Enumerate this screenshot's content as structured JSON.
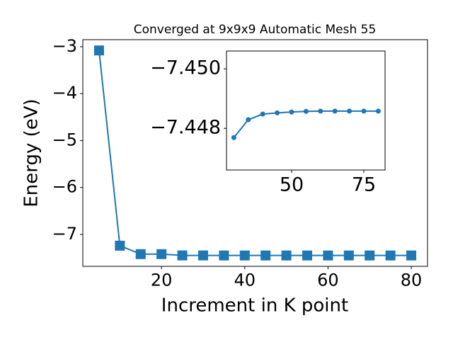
{
  "chart_data": [
    {
      "type": "line",
      "title": "Converged at 9x9x9 Automatic Mesh 55",
      "x_label": "Increment in K point",
      "y_label": "Energy (eV)",
      "x": [
        5,
        10,
        15,
        20,
        25,
        30,
        35,
        40,
        45,
        50,
        55,
        60,
        65,
        70,
        75,
        80
      ],
      "series": [
        {
          "color": "#1f77b4",
          "marker": "square",
          "values": [
            -3.08,
            -7.24,
            -7.42,
            -7.42,
            -7.447,
            -7.44769,
            -7.44829,
            -7.44848,
            -7.44852,
            -7.44855,
            -7.44857,
            -7.44858,
            -7.44858,
            -7.44858,
            -7.44858,
            -7.44858
          ]
        }
      ],
      "xlim": [
        1.1,
        83.9
      ],
      "ylim": [
        -7.68,
        -2.85
      ],
      "xticks": [
        20,
        40,
        60,
        80
      ],
      "yticks": [
        {
          "value": -7,
          "label": "−7"
        },
        {
          "value": -6,
          "label": "−6"
        },
        {
          "value": -5,
          "label": "−5"
        },
        {
          "value": -4,
          "label": "−4"
        },
        {
          "value": -3,
          "label": "−3"
        }
      ]
    },
    {
      "type": "line",
      "x": [
        30,
        35,
        40,
        45,
        50,
        55,
        60,
        65,
        70,
        75,
        80
      ],
      "series": [
        {
          "color": "#1f77b4",
          "marker": "circle",
          "values": [
            -7.44769,
            -7.44829,
            -7.44848,
            -7.44852,
            -7.44855,
            -7.44857,
            -7.44858,
            -7.44858,
            -7.44858,
            -7.44858,
            -7.44858
          ]
        }
      ],
      "xlim": [
        27.45,
        82.35
      ],
      "ylim": [
        -7.4466,
        -7.4506
      ],
      "xticks": [
        50,
        75
      ],
      "yticks": [
        {
          "value": -7.448,
          "label": "−7.448"
        },
        {
          "value": -7.45,
          "label": "−7.450"
        }
      ]
    }
  ]
}
